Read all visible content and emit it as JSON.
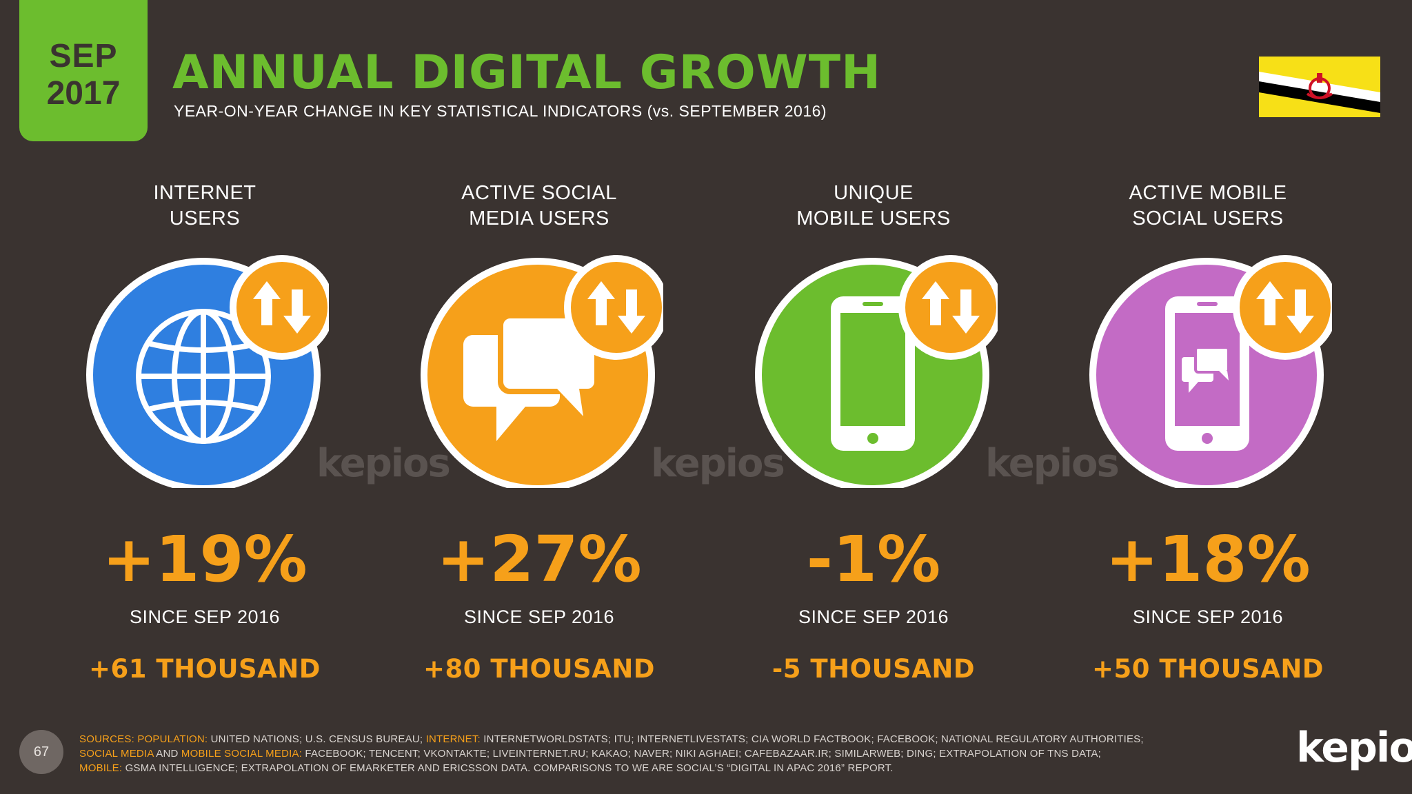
{
  "header": {
    "month": "SEP",
    "year": "2017",
    "title": "ANNUAL DIGITAL GROWTH",
    "subtitle": "YEAR-ON-YEAR CHANGE IN KEY STATISTICAL INDICATORS (vs. SEPTEMBER 2016)",
    "flag_icon": "brunei-flag-icon"
  },
  "colors": {
    "background": "#3a3330",
    "accent_green": "#6cbd2e",
    "accent_orange": "#f6a01a",
    "internet_blue": "#2f7fe0",
    "social_orange": "#f6a01a",
    "mobile_green": "#6cbd2e",
    "mobile_social_purple": "#c36bc5"
  },
  "watermark": "kepios",
  "stats": [
    {
      "label_line1": "INTERNET",
      "label_line2": "USERS",
      "icon": "globe-icon",
      "percent": "+19%",
      "since": "SINCE SEP 2016",
      "absolute": "+61 THOUSAND"
    },
    {
      "label_line1": "ACTIVE SOCIAL",
      "label_line2": "MEDIA USERS",
      "icon": "speech-bubbles-icon",
      "percent": "+27%",
      "since": "SINCE SEP 2016",
      "absolute": "+80 THOUSAND"
    },
    {
      "label_line1": "UNIQUE",
      "label_line2": "MOBILE USERS",
      "icon": "mobile-phone-icon",
      "percent": "-1%",
      "since": "SINCE SEP 2016",
      "absolute": "-5 THOUSAND"
    },
    {
      "label_line1": "ACTIVE MOBILE",
      "label_line2": "SOCIAL USERS",
      "icon": "mobile-chat-icon",
      "percent": "+18%",
      "since": "SINCE SEP 2016",
      "absolute": "+50 THOUSAND"
    }
  ],
  "growth_badge_icon": "up-down-arrows-icon",
  "footer": {
    "page_number": "67",
    "sources": {
      "k1": "SOURCES:",
      "k2": "POPULATION:",
      "t2": " UNITED NATIONS; U.S. CENSUS BUREAU; ",
      "k3": "INTERNET:",
      "t3": " INTERNETWORLDSTATS; ITU; INTERNETLIVESTATS; CIA WORLD FACTBOOK; FACEBOOK; NATIONAL REGULATORY AUTHORITIES;",
      "k4": "SOCIAL MEDIA",
      "t4": " AND ",
      "k5": "MOBILE SOCIAL MEDIA:",
      "t5": " FACEBOOK; TENCENT; VKONTAKTE; LIVEINTERNET.RU; KAKAO; NAVER; NIKI AGHAEI; CAFEBAZAAR.IR; SIMILARWEB; DING; EXTRAPOLATION OF TNS DATA;",
      "k6": "MOBILE:",
      "t6": " GSMA INTELLIGENCE; EXTRAPOLATION OF EMARKETER AND ERICSSON DATA. COMPARISONS TO WE ARE SOCIAL’S “DIGITAL IN APAC 2016” REPORT."
    },
    "brand": "kepios"
  }
}
